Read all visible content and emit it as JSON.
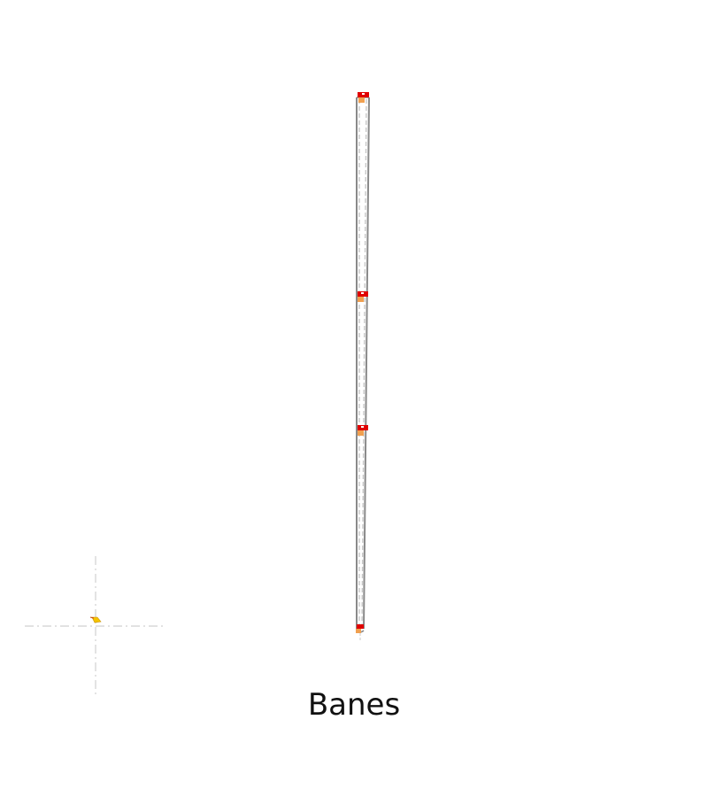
{
  "caption": "Banes",
  "colors": {
    "track_outline": "#8a8a8a",
    "track_dash": "#c8c8c8",
    "signal_red": "#e00000",
    "signal_orange": "#f0a050",
    "origin_marker": "#f5c400",
    "crosshair": "#d0d0d0"
  },
  "map": {
    "elements": [
      {
        "name": "track-loop",
        "kind": "rail-track"
      },
      {
        "name": "station-marker-top",
        "kind": "station"
      },
      {
        "name": "station-marker-upper",
        "kind": "station"
      },
      {
        "name": "station-marker-middle",
        "kind": "station"
      },
      {
        "name": "station-marker-bottom",
        "kind": "station"
      },
      {
        "name": "origin-crosshair",
        "kind": "reference-axes"
      }
    ]
  }
}
